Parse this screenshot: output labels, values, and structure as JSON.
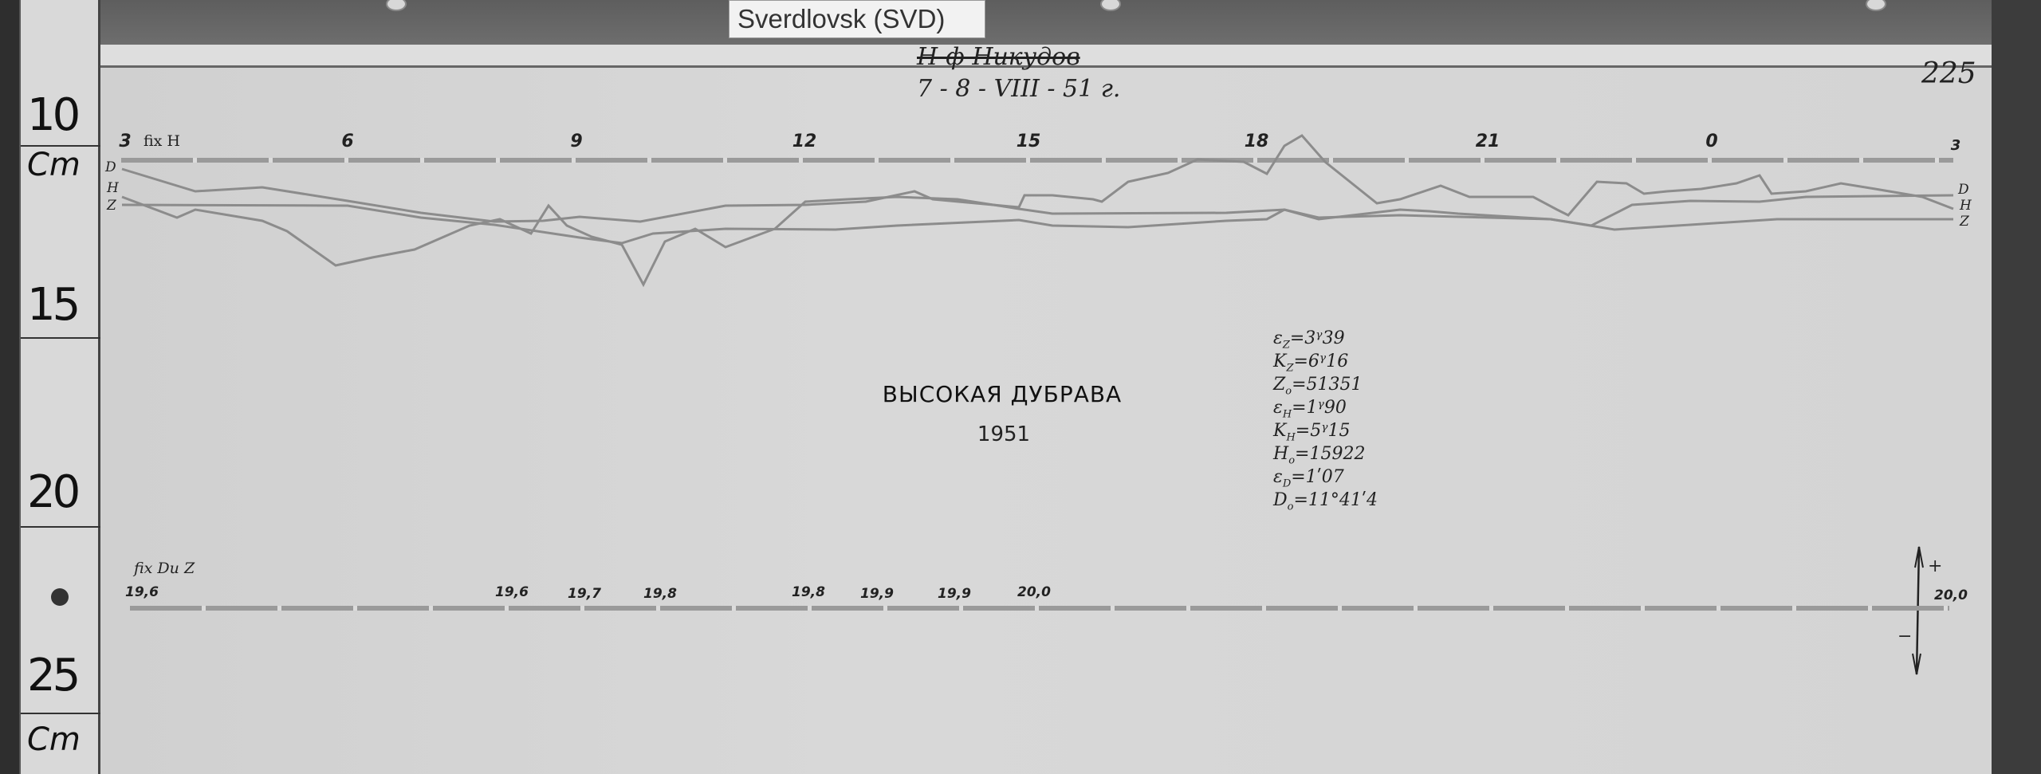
{
  "station_tag": "Sverdlovsk (SVD)",
  "ruler": {
    "marks": [
      "10",
      "Cm",
      "15",
      "20",
      "25",
      "Cm"
    ]
  },
  "header": {
    "signature": "Н-ф Никудов",
    "date": "7 - 8 - VIII - 51 г."
  },
  "sheet_number": "225",
  "top_axis": {
    "fix_label": "fix H",
    "hours": [
      "3",
      "6",
      "9",
      "12",
      "15",
      "18",
      "21",
      "0",
      "3"
    ],
    "trace_labels_left": [
      "D",
      "H",
      "Z"
    ],
    "trace_labels_right": [
      "D",
      "H",
      "Z"
    ]
  },
  "title": "ВЫСОКАЯ ДУБРАВА",
  "year": "1951",
  "constants": [
    {
      "sym": "ε",
      "sub": "Z",
      "value": "=3ᵞ39"
    },
    {
      "sym": "K",
      "sub": "Z",
      "value": "=6ᵞ16"
    },
    {
      "sym": "Z",
      "sub": "o",
      "value": "=51351"
    },
    {
      "sym": "ε",
      "sub": "H",
      "value": "=1ᵞ90"
    },
    {
      "sym": "K",
      "sub": "H",
      "value": "=5ᵞ15"
    },
    {
      "sym": "H",
      "sub": "o",
      "value": "=15922"
    },
    {
      "sym": "ε",
      "sub": "D",
      "value": "=1ʹ07"
    },
    {
      "sym": "D",
      "sub": "o",
      "value": "=11°41ʹ4"
    }
  ],
  "bottom_axis": {
    "fix_label": "fix Du Z",
    "temperature_labels": [
      "19,6",
      "19,6",
      "19,7",
      "19,8",
      "19,8",
      "19,9",
      "19,9",
      "20,0"
    ],
    "end_label": "20,0",
    "plus": "+",
    "minus": "−"
  },
  "colors": {
    "paper": "#d4d4d4",
    "trace": "#8c8c8c",
    "ink": "#222222"
  }
}
